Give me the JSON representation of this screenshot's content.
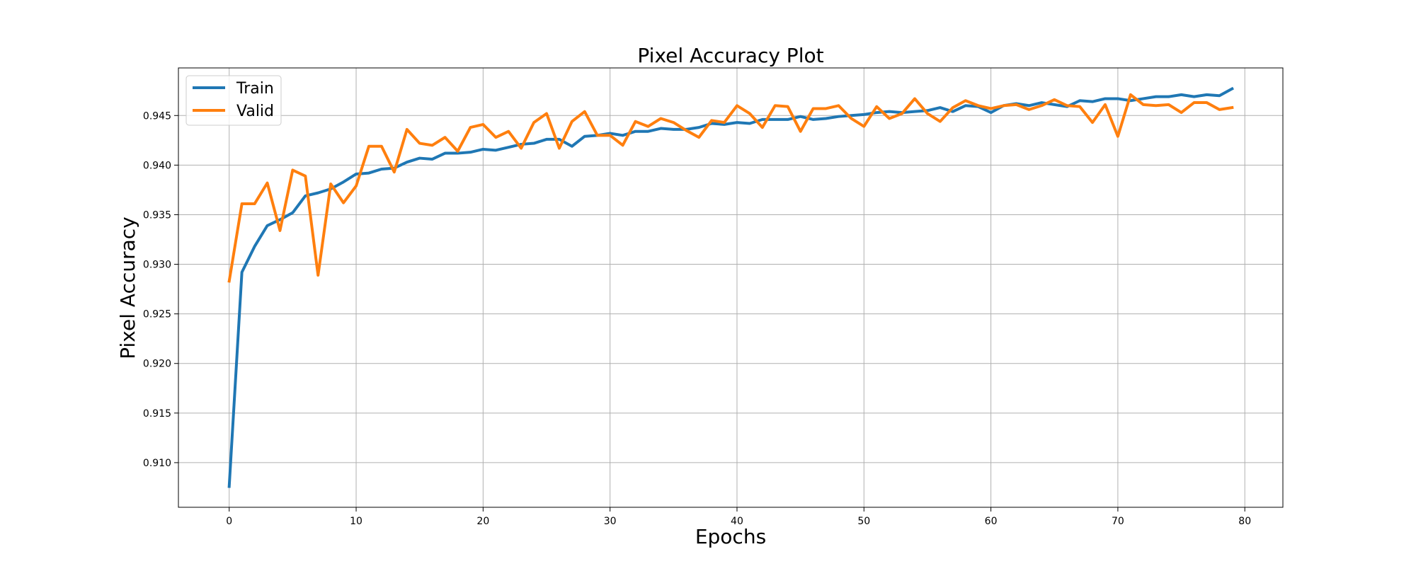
{
  "chart_data": {
    "type": "line",
    "title": "Pixel Accuracy Plot",
    "xlabel": "Epochs",
    "ylabel": "Pixel Accuracy",
    "xlim": [
      -4,
      83
    ],
    "ylim": [
      0.9055,
      0.9498
    ],
    "xticks": [
      0,
      10,
      20,
      30,
      40,
      50,
      60,
      70,
      80
    ],
    "yticks": [
      0.91,
      0.915,
      0.92,
      0.925,
      0.93,
      0.935,
      0.94,
      0.945
    ],
    "ytick_labels": [
      "0.910",
      "0.915",
      "0.920",
      "0.925",
      "0.930",
      "0.935",
      "0.940",
      "0.945"
    ],
    "grid": true,
    "legend_position": "top-left",
    "series": [
      {
        "name": "Train",
        "color": "#1f77b4",
        "x": [
          0,
          1,
          2,
          3,
          4,
          5,
          6,
          7,
          8,
          9,
          10,
          11,
          12,
          13,
          14,
          15,
          16,
          17,
          18,
          19,
          20,
          21,
          22,
          23,
          24,
          25,
          26,
          27,
          28,
          29,
          30,
          31,
          32,
          33,
          34,
          35,
          36,
          37,
          38,
          39,
          40,
          41,
          42,
          43,
          44,
          45,
          46,
          47,
          48,
          49,
          50,
          51,
          52,
          53,
          54,
          55,
          56,
          57,
          58,
          59,
          60,
          61,
          62,
          63,
          64,
          65,
          66,
          67,
          68,
          69,
          70,
          71,
          72,
          73,
          74,
          75,
          76,
          77,
          78,
          79
        ],
        "values": [
          0.9076,
          0.9292,
          0.9318,
          0.9339,
          0.9345,
          0.9352,
          0.9369,
          0.9372,
          0.9376,
          0.9383,
          0.9391,
          0.9392,
          0.9396,
          0.9397,
          0.9403,
          0.9407,
          0.9406,
          0.9412,
          0.9412,
          0.9413,
          0.9416,
          0.9415,
          0.9418,
          0.9421,
          0.9422,
          0.9426,
          0.9426,
          0.9419,
          0.9429,
          0.943,
          0.9432,
          0.943,
          0.9434,
          0.9434,
          0.9437,
          0.9436,
          0.9436,
          0.9438,
          0.9442,
          0.9441,
          0.9443,
          0.9442,
          0.9446,
          0.9446,
          0.9446,
          0.9449,
          0.9446,
          0.9447,
          0.9449,
          0.945,
          0.9451,
          0.9453,
          0.9454,
          0.9453,
          0.9454,
          0.9455,
          0.9458,
          0.9454,
          0.946,
          0.9459,
          0.9453,
          0.946,
          0.9462,
          0.946,
          0.9463,
          0.9461,
          0.9459,
          0.9465,
          0.9464,
          0.9467,
          0.9467,
          0.9465,
          0.9467,
          0.9469,
          0.9469,
          0.9471,
          0.9469,
          0.9471,
          0.947,
          0.9477
        ]
      },
      {
        "name": "Valid",
        "color": "#ff7f0e",
        "x": [
          0,
          1,
          2,
          3,
          4,
          5,
          6,
          7,
          8,
          9,
          10,
          11,
          12,
          13,
          14,
          15,
          16,
          17,
          18,
          19,
          20,
          21,
          22,
          23,
          24,
          25,
          26,
          27,
          28,
          29,
          30,
          31,
          32,
          33,
          34,
          35,
          36,
          37,
          38,
          39,
          40,
          41,
          42,
          43,
          44,
          45,
          46,
          47,
          48,
          49,
          50,
          51,
          52,
          53,
          54,
          55,
          56,
          57,
          58,
          59,
          60,
          61,
          62,
          63,
          64,
          65,
          66,
          67,
          68,
          69,
          70,
          71,
          72,
          73,
          74,
          75,
          76,
          77,
          78,
          79
        ],
        "values": [
          0.9283,
          0.9361,
          0.9361,
          0.9382,
          0.9334,
          0.9395,
          0.9389,
          0.9289,
          0.9381,
          0.9362,
          0.9379,
          0.9419,
          0.9419,
          0.9393,
          0.9436,
          0.9422,
          0.942,
          0.9428,
          0.9414,
          0.9438,
          0.9441,
          0.9428,
          0.9434,
          0.9417,
          0.9443,
          0.9452,
          0.9417,
          0.9444,
          0.9454,
          0.943,
          0.943,
          0.942,
          0.9444,
          0.9439,
          0.9447,
          0.9443,
          0.9435,
          0.9428,
          0.9445,
          0.9443,
          0.946,
          0.9452,
          0.9438,
          0.946,
          0.9459,
          0.9434,
          0.9457,
          0.9457,
          0.946,
          0.9447,
          0.9439,
          0.9459,
          0.9447,
          0.9452,
          0.9467,
          0.9452,
          0.9444,
          0.9458,
          0.9465,
          0.946,
          0.9457,
          0.946,
          0.9461,
          0.9456,
          0.946,
          0.9466,
          0.946,
          0.9459,
          0.9443,
          0.9461,
          0.9429,
          0.9471,
          0.9461,
          0.946,
          0.9461,
          0.9453,
          0.9463,
          0.9463,
          0.9456,
          0.9458
        ]
      }
    ]
  }
}
